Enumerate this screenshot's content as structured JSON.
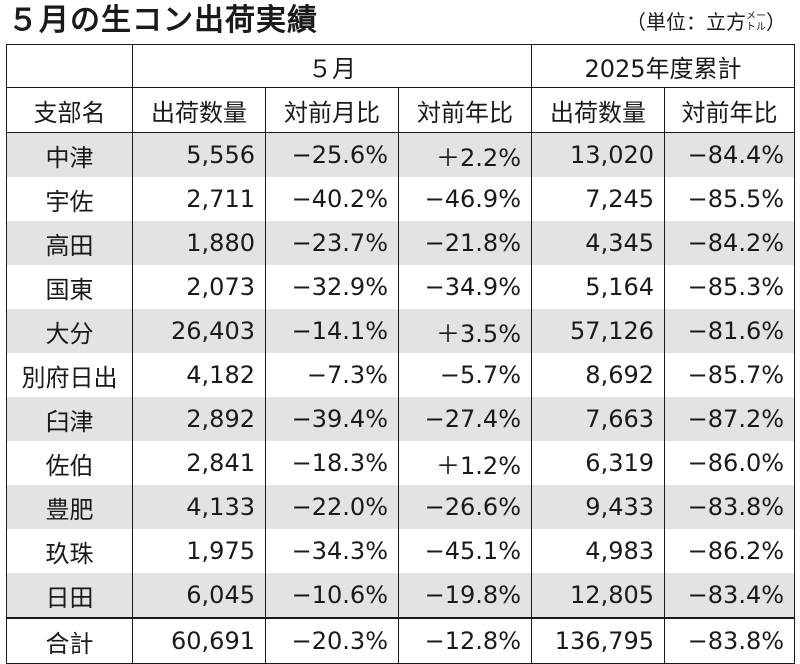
{
  "title": "５月の生コン出荷実績",
  "unit": {
    "main": "（単位：立方",
    "small_top": "メー",
    "small_bottom": "トル",
    "close": "）"
  },
  "header": {
    "group_month": "５月",
    "group_cumulative": "2025年度累計",
    "columns": [
      "支部名",
      "出荷数量",
      "対前月比",
      "対前年比",
      "出荷数量",
      "対前年比"
    ]
  },
  "rows": [
    [
      "中津",
      "5,556",
      "−25.6%",
      "＋2.2%",
      "13,020",
      "−84.4%"
    ],
    [
      "宇佐",
      "2,711",
      "−40.2%",
      "−46.9%",
      "7,245",
      "−85.5%"
    ],
    [
      "高田",
      "1,880",
      "−23.7%",
      "−21.8%",
      "4,345",
      "−84.2%"
    ],
    [
      "国東",
      "2,073",
      "−32.9%",
      "−34.9%",
      "5,164",
      "−85.3%"
    ],
    [
      "大分",
      "26,403",
      "−14.1%",
      "＋3.5%",
      "57,126",
      "−81.6%"
    ],
    [
      "別府日出",
      "4,182",
      "−7.3%",
      "−5.7%",
      "8,692",
      "−85.7%"
    ],
    [
      "臼津",
      "2,892",
      "−39.4%",
      "−27.4%",
      "7,663",
      "−87.2%"
    ],
    [
      "佐伯",
      "2,841",
      "−18.3%",
      "＋1.2%",
      "6,319",
      "−86.0%"
    ],
    [
      "豊肥",
      "4,133",
      "−22.0%",
      "−26.6%",
      "9,433",
      "−83.8%"
    ],
    [
      "玖珠",
      "1,975",
      "−34.3%",
      "−45.1%",
      "4,983",
      "−86.2%"
    ],
    [
      "日田",
      "6,045",
      "−10.6%",
      "−19.8%",
      "12,805",
      "−83.4%"
    ]
  ],
  "total": [
    "合計",
    "60,691",
    "−20.3%",
    "−12.8%",
    "136,795",
    "−83.8%"
  ]
}
